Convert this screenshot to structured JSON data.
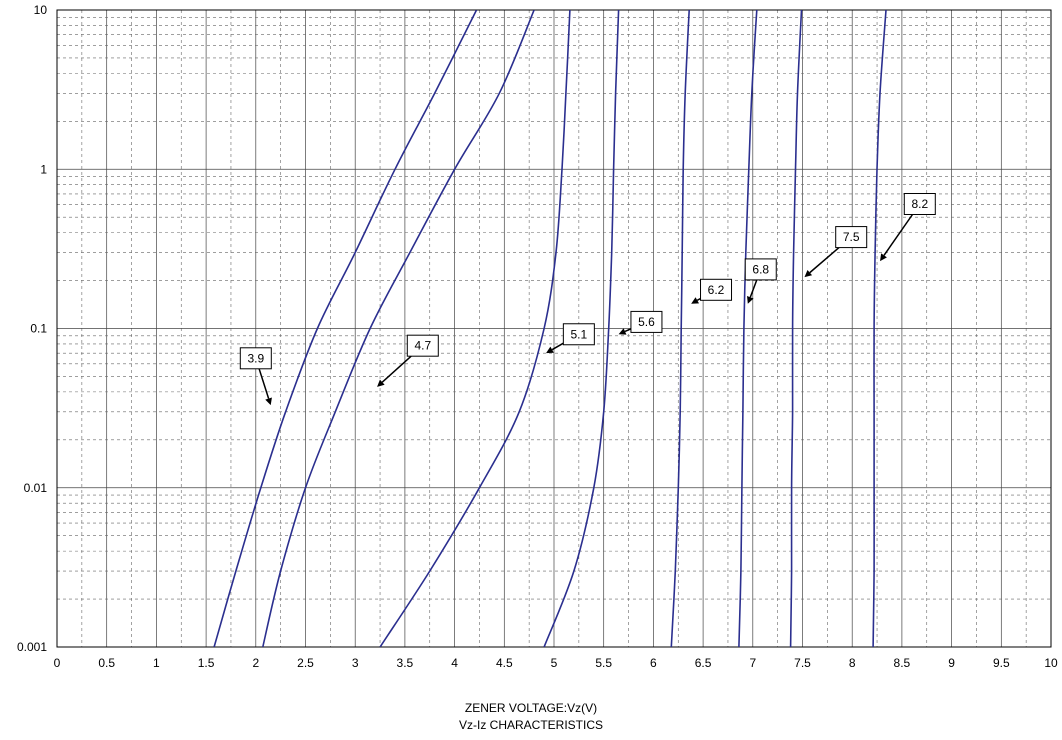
{
  "chart_data": {
    "type": "line",
    "xlabel": "ZENER VOLTAGE:Vz(V)",
    "title": "Vz-Iz CHARACTERISTICS",
    "ylabel": "",
    "xlim": [
      0,
      10
    ],
    "ylim": [
      0.001,
      10
    ],
    "yscale": "log",
    "grid": true,
    "x_ticks": [
      "0",
      "0.5",
      "1",
      "1.5",
      "2",
      "2.5",
      "3",
      "3.5",
      "4",
      "4.5",
      "5",
      "5.5",
      "6",
      "6.5",
      "7",
      "7.5",
      "8",
      "8.5",
      "9",
      "9.5",
      "10"
    ],
    "y_ticks": [
      "0.001",
      "0.01",
      "0.1",
      "1",
      "10"
    ],
    "line_color": "#2b2f8f",
    "series": [
      {
        "name": "3.9",
        "points": [
          [
            1.58,
            0.001
          ],
          [
            1.8,
            0.003
          ],
          [
            2.05,
            0.01
          ],
          [
            2.3,
            0.03
          ],
          [
            2.62,
            0.1
          ],
          [
            3.0,
            0.3
          ],
          [
            3.4,
            1
          ],
          [
            3.8,
            3
          ],
          [
            4.22,
            10
          ]
        ],
        "label_at": [
          2.0,
          0.065
        ],
        "arrow_to": [
          2.15,
          0.033
        ]
      },
      {
        "name": "4.7",
        "points": [
          [
            2.07,
            0.001
          ],
          [
            2.25,
            0.003
          ],
          [
            2.5,
            0.01
          ],
          [
            2.8,
            0.03
          ],
          [
            3.15,
            0.1
          ],
          [
            3.55,
            0.3
          ],
          [
            4.0,
            1
          ],
          [
            4.45,
            3
          ],
          [
            4.8,
            10
          ]
        ],
        "label_at": [
          3.68,
          0.078
        ],
        "arrow_to": [
          3.22,
          0.043
        ]
      },
      {
        "name": "5.1",
        "points": [
          [
            3.25,
            0.001
          ],
          [
            3.75,
            0.003
          ],
          [
            4.25,
            0.01
          ],
          [
            4.65,
            0.03
          ],
          [
            4.9,
            0.1
          ],
          [
            5.02,
            0.3
          ],
          [
            5.08,
            1
          ],
          [
            5.12,
            3
          ],
          [
            5.16,
            10
          ]
        ],
        "label_at": [
          5.25,
          0.092
        ],
        "arrow_to": [
          4.92,
          0.07
        ]
      },
      {
        "name": "5.6",
        "points": [
          [
            4.9,
            0.001
          ],
          [
            5.2,
            0.003
          ],
          [
            5.4,
            0.01
          ],
          [
            5.5,
            0.03
          ],
          [
            5.55,
            0.1
          ],
          [
            5.58,
            0.3
          ],
          [
            5.6,
            1
          ],
          [
            5.62,
            3
          ],
          [
            5.65,
            10
          ]
        ],
        "label_at": [
          5.93,
          0.11
        ],
        "arrow_to": [
          5.65,
          0.092
        ]
      },
      {
        "name": "6.2",
        "points": [
          [
            6.18,
            0.001
          ],
          [
            6.22,
            0.003
          ],
          [
            6.25,
            0.01
          ],
          [
            6.27,
            0.03
          ],
          [
            6.28,
            0.1
          ],
          [
            6.29,
            0.3
          ],
          [
            6.3,
            1
          ],
          [
            6.32,
            3
          ],
          [
            6.36,
            10
          ]
        ],
        "label_at": [
          6.63,
          0.175
        ],
        "arrow_to": [
          6.38,
          0.143
        ]
      },
      {
        "name": "6.8",
        "points": [
          [
            6.86,
            0.001
          ],
          [
            6.88,
            0.003
          ],
          [
            6.89,
            0.01
          ],
          [
            6.9,
            0.03
          ],
          [
            6.91,
            0.1
          ],
          [
            6.93,
            0.3
          ],
          [
            6.96,
            1
          ],
          [
            6.99,
            3
          ],
          [
            7.04,
            10
          ]
        ],
        "label_at": [
          7.08,
          0.235
        ],
        "arrow_to": [
          6.95,
          0.143
        ]
      },
      {
        "name": "7.5",
        "points": [
          [
            7.38,
            0.001
          ],
          [
            7.39,
            0.003
          ],
          [
            7.39,
            0.01
          ],
          [
            7.4,
            0.03
          ],
          [
            7.4,
            0.1
          ],
          [
            7.41,
            0.3
          ],
          [
            7.43,
            1
          ],
          [
            7.45,
            3
          ],
          [
            7.49,
            10
          ]
        ],
        "label_at": [
          7.99,
          0.375
        ],
        "arrow_to": [
          7.52,
          0.21
        ]
      },
      {
        "name": "8.2",
        "points": [
          [
            8.21,
            0.001
          ],
          [
            8.22,
            0.003
          ],
          [
            8.22,
            0.01
          ],
          [
            8.22,
            0.03
          ],
          [
            8.22,
            0.1
          ],
          [
            8.23,
            0.3
          ],
          [
            8.25,
            1
          ],
          [
            8.28,
            3
          ],
          [
            8.34,
            10
          ]
        ],
        "label_at": [
          8.68,
          0.605
        ],
        "arrow_to": [
          8.28,
          0.265
        ]
      }
    ]
  }
}
